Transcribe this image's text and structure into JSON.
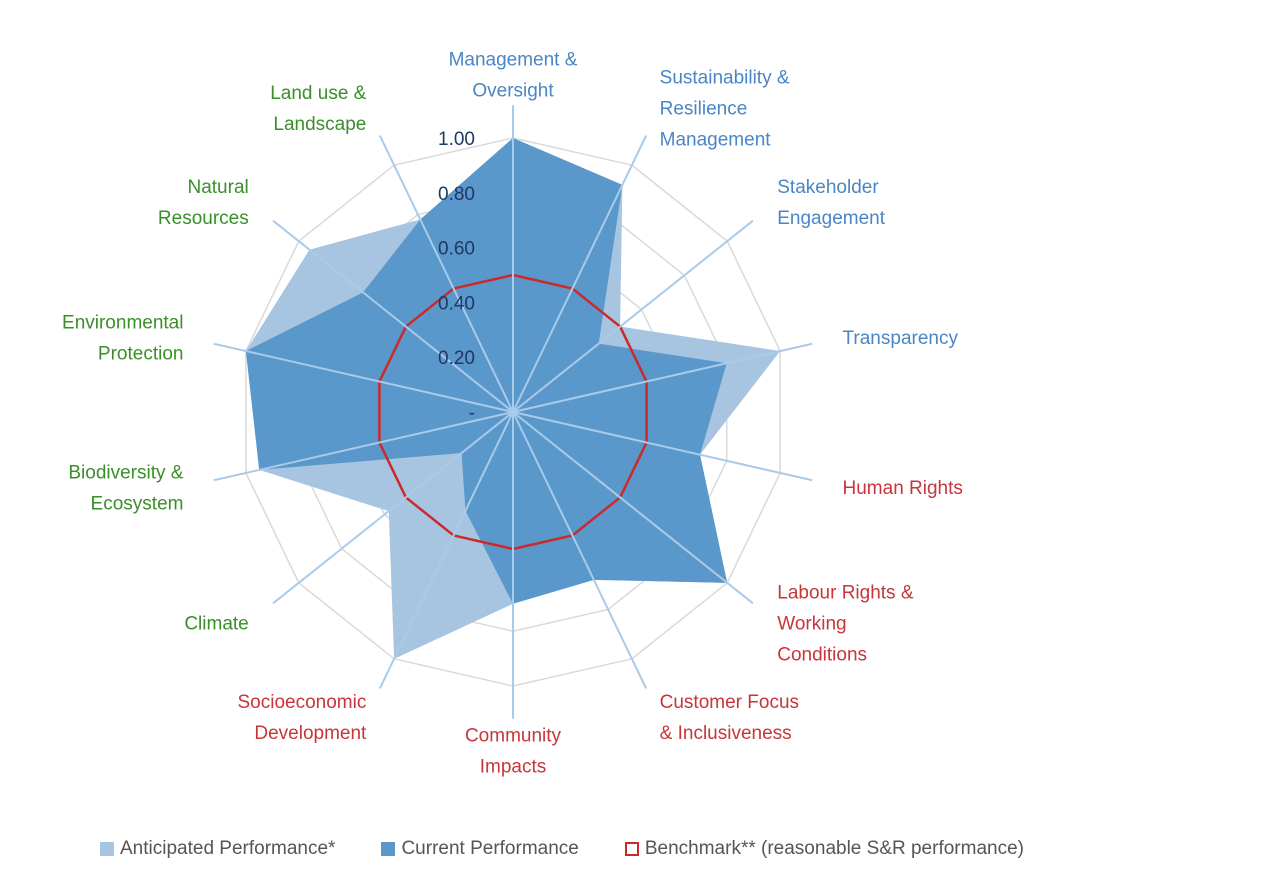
{
  "chart_data": {
    "type": "radar",
    "axis_ticks": [
      "-",
      "0.20",
      "0.40",
      "0.60",
      "0.80",
      "1.00"
    ],
    "rmax": 1.0,
    "categories": [
      {
        "label": [
          "Management &",
          "Oversight"
        ],
        "group": "governance"
      },
      {
        "label": [
          "Sustainability &",
          "Resilience",
          "Management"
        ],
        "group": "governance"
      },
      {
        "label": [
          "Stakeholder",
          "Engagement"
        ],
        "group": "governance"
      },
      {
        "label": [
          "Transparency"
        ],
        "group": "governance"
      },
      {
        "label": [
          "Human Rights"
        ],
        "group": "social"
      },
      {
        "label": [
          "Labour Rights &",
          "Working",
          "Conditions"
        ],
        "group": "social"
      },
      {
        "label": [
          "Customer Focus",
          "& Inclusiveness"
        ],
        "group": "social"
      },
      {
        "label": [
          "Community",
          "Impacts"
        ],
        "group": "social"
      },
      {
        "label": [
          "Socioeconomic",
          "Development"
        ],
        "group": "social"
      },
      {
        "label": [
          "Climate"
        ],
        "group": "environmental"
      },
      {
        "label": [
          "Biodiversity &",
          "Ecosystem"
        ],
        "group": "environmental"
      },
      {
        "label": [
          "Environmental",
          "Protection"
        ],
        "group": "environmental"
      },
      {
        "label": [
          "Natural",
          "Resources"
        ],
        "group": "environmental"
      },
      {
        "label": [
          "Land use &",
          "Landscape"
        ],
        "group": "environmental"
      }
    ],
    "series": [
      {
        "name": "Anticipated Performance*",
        "values": [
          1.0,
          0.92,
          0.5,
          1.0,
          0.7,
          1.0,
          0.68,
          0.7,
          1.0,
          0.58,
          0.95,
          1.0,
          0.95,
          0.78
        ]
      },
      {
        "name": "Current Performance",
        "values": [
          1.0,
          0.92,
          0.4,
          0.8,
          0.7,
          1.0,
          0.68,
          0.7,
          0.4,
          0.24,
          0.95,
          1.0,
          0.7,
          0.78
        ]
      },
      {
        "name": "Benchmark** (reasonable S&R performance)",
        "values": [
          0.5,
          0.5,
          0.5,
          0.5,
          0.5,
          0.5,
          0.5,
          0.5,
          0.5,
          0.5,
          0.5,
          0.5,
          0.5,
          0.5
        ]
      }
    ]
  },
  "colors": {
    "anticipated": "#a7c4e0",
    "current": "#5a97cb",
    "benchmark": "#cc2a2a",
    "grid": "#d9d9d9",
    "spoke": "#a9cbea",
    "governance": "#4a86c5",
    "social": "#c8353a",
    "environmental": "#3a8f2a"
  },
  "legend": {
    "anticipated": "Anticipated Performance*",
    "current": "Current Performance",
    "benchmark": "Benchmark** (reasonable S&R performance)"
  }
}
